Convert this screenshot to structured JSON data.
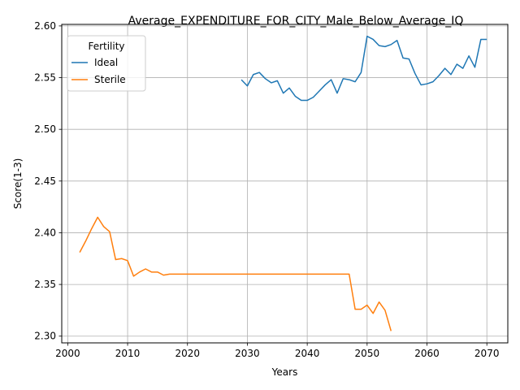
{
  "chart_data": {
    "type": "line",
    "title": "Average_EXPENDITURE_FOR_CITY_Male_Below_Average_IQ",
    "xlabel": "Years",
    "ylabel": "Score(1-3)",
    "xlim": [
      1999,
      2073.5
    ],
    "ylim": [
      2.2935,
      2.6015
    ],
    "xticks": [
      2000,
      2010,
      2020,
      2030,
      2040,
      2050,
      2060,
      2070
    ],
    "yticks": [
      2.3,
      2.35,
      2.4,
      2.45,
      2.5,
      2.55,
      2.6
    ],
    "xtick_labels": [
      "2000",
      "2010",
      "2020",
      "2030",
      "2040",
      "2050",
      "2060",
      "2070"
    ],
    "ytick_labels": [
      "2.30",
      "2.35",
      "2.40",
      "2.45",
      "2.50",
      "2.55",
      "2.60"
    ],
    "grid": true,
    "legend": {
      "title": "Fertility",
      "placement": "upper left"
    },
    "series": [
      {
        "name": "Ideal",
        "color": "#1f77b4",
        "x": [
          2029,
          2030,
          2031,
          2032,
          2033,
          2034,
          2035,
          2036,
          2037,
          2038,
          2039,
          2040,
          2041,
          2042,
          2043,
          2044,
          2045,
          2046,
          2047,
          2048,
          2049,
          2050,
          2051,
          2052,
          2053,
          2054,
          2055,
          2056,
          2057,
          2058,
          2059,
          2060,
          2061,
          2062,
          2063,
          2064,
          2065,
          2066,
          2067,
          2068,
          2069,
          2070
        ],
        "y": [
          2.548,
          2.542,
          2.553,
          2.555,
          2.549,
          2.545,
          2.547,
          2.535,
          2.54,
          2.532,
          2.528,
          2.528,
          2.531,
          2.537,
          2.543,
          2.548,
          2.535,
          2.549,
          2.548,
          2.546,
          2.555,
          2.59,
          2.587,
          2.581,
          2.58,
          2.582,
          2.586,
          2.569,
          2.568,
          2.554,
          2.543,
          2.544,
          2.546,
          2.552,
          2.559,
          2.553,
          2.563,
          2.559,
          2.571,
          2.56,
          2.587,
          2.587
        ]
      },
      {
        "name": "Sterile",
        "color": "#ff7f0e",
        "x": [
          2002,
          2003,
          2004,
          2005,
          2006,
          2007,
          2008,
          2009,
          2010,
          2011,
          2012,
          2013,
          2014,
          2015,
          2016,
          2017,
          2018,
          2019,
          2020,
          2021,
          2022,
          2023,
          2024,
          2025,
          2026,
          2027,
          2028,
          2029,
          2030,
          2031,
          2032,
          2033,
          2034,
          2035,
          2036,
          2037,
          2038,
          2039,
          2040,
          2041,
          2042,
          2043,
          2044,
          2045,
          2046,
          2047,
          2048,
          2049,
          2050,
          2051,
          2052,
          2053,
          2054
        ],
        "y": [
          2.381,
          2.392,
          2.404,
          2.415,
          2.406,
          2.401,
          2.374,
          2.375,
          2.373,
          2.358,
          2.362,
          2.365,
          2.362,
          2.362,
          2.359,
          2.36,
          2.36,
          2.36,
          2.36,
          2.36,
          2.36,
          2.36,
          2.36,
          2.36,
          2.36,
          2.36,
          2.36,
          2.36,
          2.36,
          2.36,
          2.36,
          2.36,
          2.36,
          2.36,
          2.36,
          2.36,
          2.36,
          2.36,
          2.36,
          2.36,
          2.36,
          2.36,
          2.36,
          2.36,
          2.36,
          2.36,
          2.326,
          2.326,
          2.33,
          2.322,
          2.333,
          2.325,
          2.305
        ]
      }
    ]
  }
}
